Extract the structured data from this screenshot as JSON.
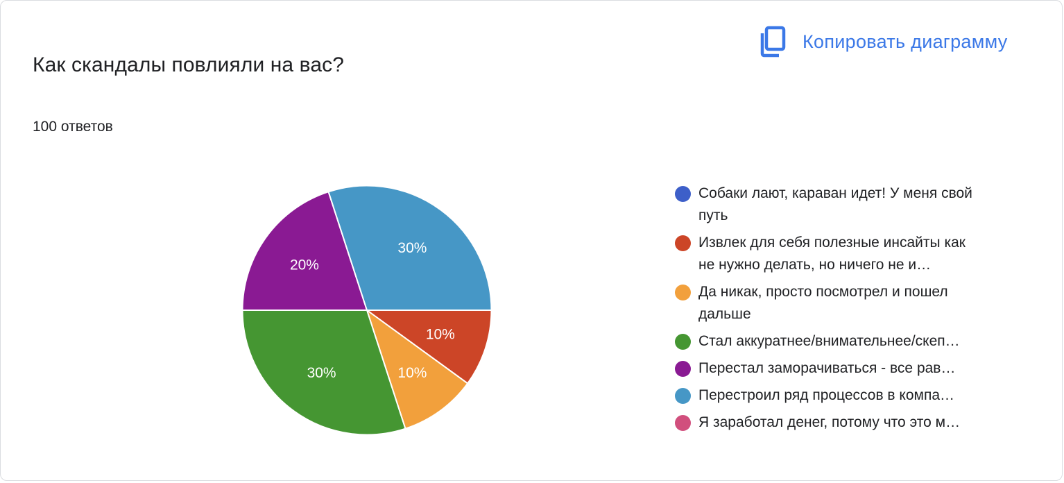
{
  "question": {
    "title": "Как скандалы повлияли на вас?",
    "responses": "100 ответов"
  },
  "toolbar": {
    "copy_label": "Копировать диаграмму",
    "copy_icon": "copy-icon"
  },
  "chart_data": {
    "type": "pie",
    "title": "Как скандалы повлияли на вас?",
    "total": 100,
    "start_direction": "3 o'clock",
    "slice_order": "clockwise",
    "legend_position": "right",
    "series": [
      {
        "name": "Собаки лают, караван идет! У меня свой путь",
        "value": 0,
        "color": "#3d5fc9",
        "label": ""
      },
      {
        "name": "Извлек для себя полезные инсайты как не нужно делать, но ничего не и…",
        "value": 10,
        "color": "#cc4527",
        "label": "10%"
      },
      {
        "name": "Да никак, просто посмотрел и пошел дальше",
        "value": 10,
        "color": "#f2a03c",
        "label": "10%"
      },
      {
        "name": "Стал аккуратнее/внимательнее/скеп…",
        "value": 30,
        "color": "#459632",
        "label": "30%"
      },
      {
        "name": "Перестал заморачиваться - все рав…",
        "value": 20,
        "color": "#8a1a93",
        "label": "20%"
      },
      {
        "name": "Перестроил ряд процессов в компа…",
        "value": 30,
        "color": "#4697c6",
        "label": "30%"
      },
      {
        "name": "Я заработал денег, потому что это м…",
        "value": 0,
        "color": "#d14f7d",
        "label": ""
      }
    ]
  }
}
